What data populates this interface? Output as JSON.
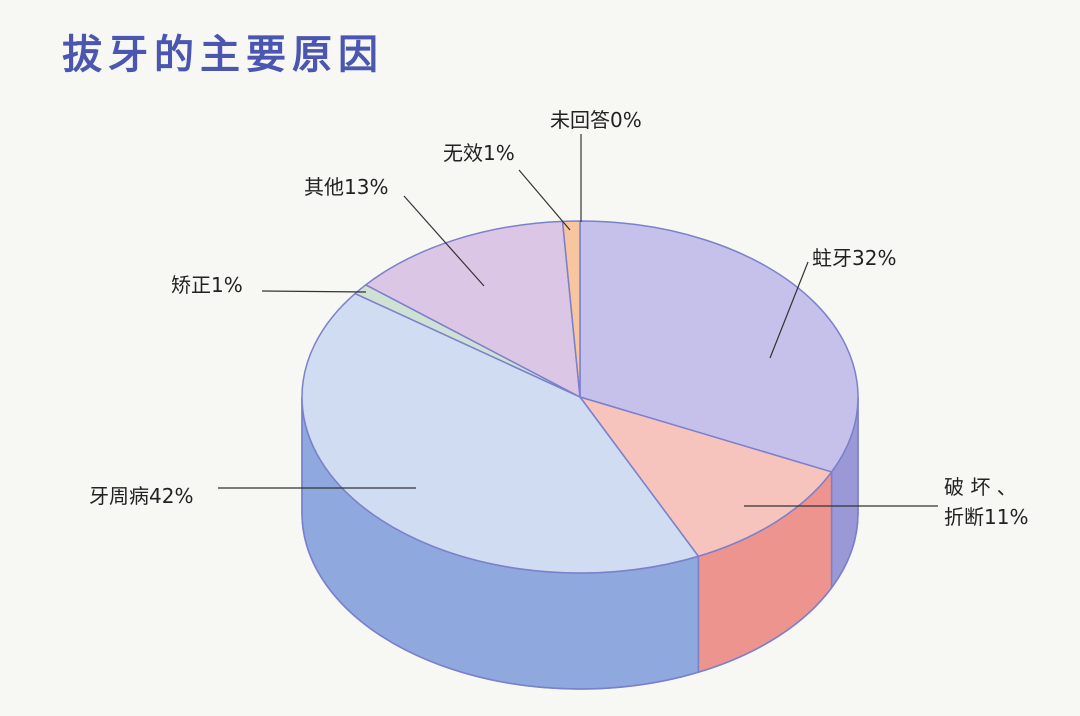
{
  "chart_data": {
    "type": "pie",
    "title": "拔牙的主要原因",
    "slices": [
      {
        "label": "蛀牙32%",
        "value": 32,
        "top_color": "#c6c1ea",
        "side_color": "#9a98d6"
      },
      {
        "label_lines": [
          "破 坏 、",
          "折断11%"
        ],
        "value": 11,
        "top_color": "#f6c4bd",
        "side_color": "#ee948e"
      },
      {
        "label": "牙周病42%",
        "value": 42,
        "top_color": "#cfdcf2",
        "side_color": "#8fa8de"
      },
      {
        "label": "矫正1%",
        "value": 1,
        "top_color": "#cfe0d4",
        "side_color": "#9fbfa8"
      },
      {
        "label": "其他13%",
        "value": 13,
        "top_color": "#dcc6e6",
        "side_color": "#b89fd0"
      },
      {
        "label": "无效1%",
        "value": 1,
        "top_color": "#f7c59e",
        "side_color": "#e8a070"
      },
      {
        "label": "未回答0%",
        "value": 0,
        "top_color": "#f0d0a0",
        "side_color": "#e0b070"
      }
    ],
    "outline_color": "#7b80cc",
    "title_color": "#4a56b0",
    "label_color": "#222222"
  }
}
